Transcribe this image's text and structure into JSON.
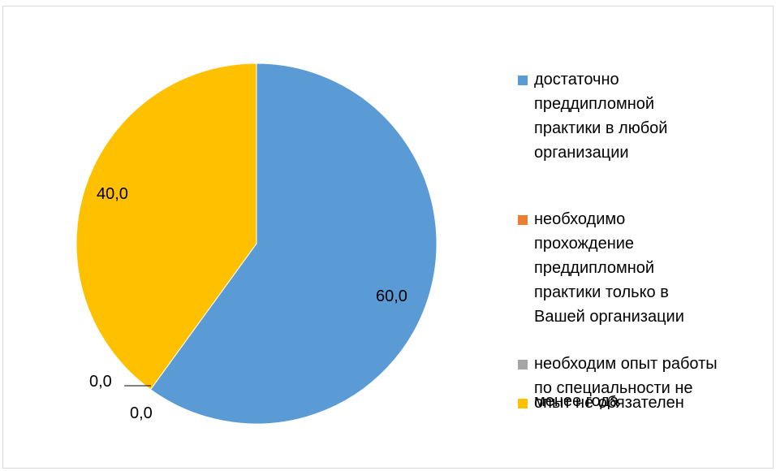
{
  "chart_data": {
    "type": "pie",
    "title": "",
    "slices": [
      {
        "label": "достаточно преддипломной практики в любой организации",
        "value": 60.0,
        "display": "60,0",
        "color": "#5b9bd5"
      },
      {
        "label": "необходимо прохождение преддипломной практики только в Вашей организации",
        "value": 0.0,
        "display": "0,0",
        "color": "#ed7d31"
      },
      {
        "label": "необходим опыт работы по специальности не менее года",
        "value": 0.0,
        "display": "0,0",
        "color": "#a5a5a5"
      },
      {
        "label": "опыт не обязателен",
        "value": 40.0,
        "display": "40,0",
        "color": "#ffc000"
      }
    ],
    "legend_position": "right"
  },
  "legend": {
    "items": [
      {
        "lines": [
          "достаточно",
          "преддипломной",
          "практики в любой",
          "организации"
        ],
        "icon": "square-swatch"
      },
      {
        "lines": [
          "необходимо",
          "прохождение",
          "преддипломной",
          "практики только в",
          "Вашей организации"
        ],
        "icon": "square-swatch"
      },
      {
        "lines": [
          "необходим опыт работы",
          "по специальности не",
          "менее года"
        ],
        "icon": "square-swatch"
      },
      {
        "lines": [
          "опыт не обязателен"
        ],
        "icon": "square-swatch"
      }
    ]
  }
}
